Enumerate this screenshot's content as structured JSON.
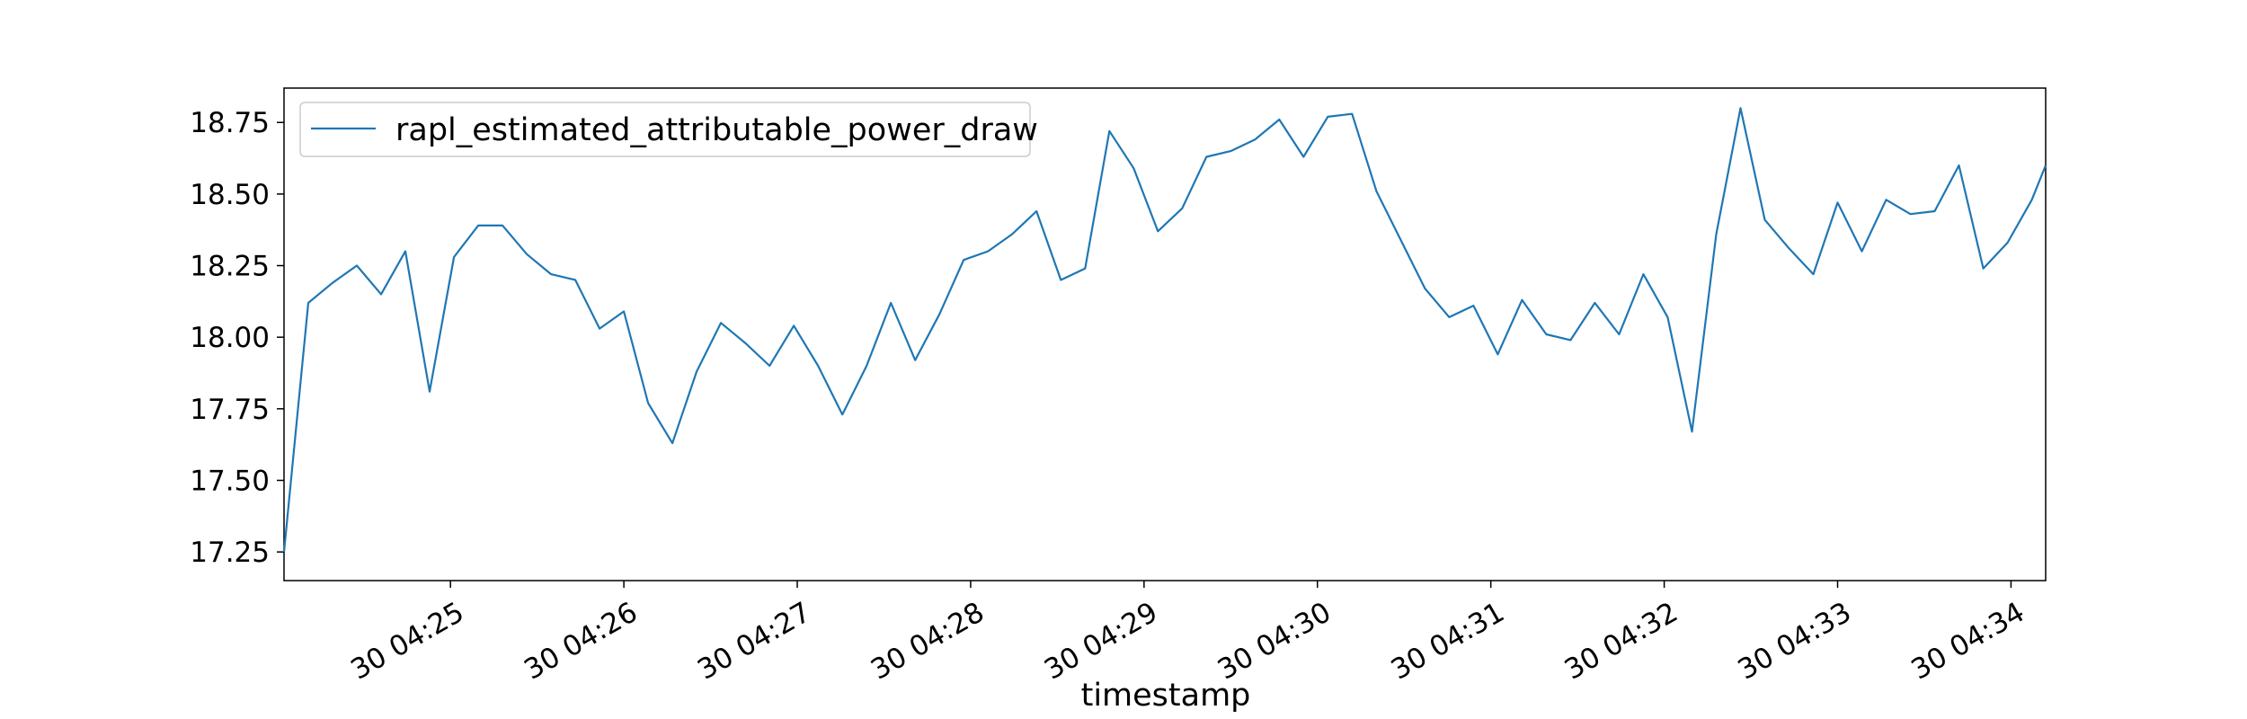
{
  "chart_data": {
    "type": "line",
    "title": "",
    "xlabel": "timestamp",
    "ylabel": "",
    "x_tick_labels": [
      "30 04:25",
      "30 04:26",
      "30 04:27",
      "30 04:28",
      "30 04:29",
      "30 04:30",
      "30 04:31",
      "30 04:32",
      "30 04:33",
      "30 04:34"
    ],
    "x_tick_minutes": [
      25,
      26,
      27,
      28,
      29,
      30,
      31,
      32,
      33,
      34
    ],
    "y_ticks": [
      17.25,
      17.5,
      17.75,
      18.0,
      18.25,
      18.5,
      18.75
    ],
    "y_tick_labels": [
      "17.25",
      "17.50",
      "17.75",
      "18.00",
      "18.25",
      "18.50",
      "18.75"
    ],
    "xlim_minutes": [
      24.04,
      34.2
    ],
    "ylim": [
      17.15,
      18.87
    ],
    "grid": false,
    "legend_position": "upper left",
    "colors": {
      "series": "#1f77b4",
      "axes": "#000000",
      "background": "#ffffff"
    },
    "series": [
      {
        "name": "rapl_estimated_attributable_power_draw",
        "x_minutes": [
          24.04,
          24.18,
          24.32,
          24.46,
          24.6,
          24.74,
          24.88,
          25.02,
          25.16,
          25.3,
          25.44,
          25.58,
          25.72,
          25.86,
          26.0,
          26.14,
          26.28,
          26.42,
          26.56,
          26.7,
          26.84,
          26.98,
          27.12,
          27.26,
          27.4,
          27.54,
          27.68,
          27.82,
          27.96,
          28.1,
          28.24,
          28.38,
          28.52,
          28.66,
          28.8,
          28.94,
          29.08,
          29.22,
          29.36,
          29.5,
          29.64,
          29.78,
          29.92,
          30.06,
          30.2,
          30.34,
          30.48,
          30.62,
          30.76,
          30.9,
          31.04,
          31.18,
          31.32,
          31.46,
          31.6,
          31.74,
          31.88,
          32.02,
          32.16,
          32.3,
          32.44,
          32.58,
          32.72,
          32.86,
          33.0,
          33.14,
          33.28,
          33.42,
          33.56,
          33.7,
          33.84,
          33.98,
          34.12,
          34.2
        ],
        "values": [
          17.25,
          18.12,
          18.19,
          18.25,
          18.15,
          18.3,
          17.81,
          18.28,
          18.39,
          18.39,
          18.29,
          18.22,
          18.2,
          18.03,
          18.09,
          17.77,
          17.63,
          17.88,
          18.05,
          17.98,
          17.9,
          18.04,
          17.9,
          17.73,
          17.9,
          18.12,
          17.92,
          18.08,
          18.27,
          18.3,
          18.36,
          18.44,
          18.2,
          18.24,
          18.72,
          18.59,
          18.37,
          18.45,
          18.63,
          18.65,
          18.69,
          18.76,
          18.63,
          18.77,
          18.78,
          18.51,
          18.34,
          18.17,
          18.07,
          18.11,
          17.94,
          18.13,
          18.01,
          17.99,
          18.12,
          18.01,
          18.22,
          18.07,
          17.67,
          18.36,
          18.8,
          18.41,
          18.31,
          18.22,
          18.47,
          18.3,
          18.48,
          18.43,
          18.44,
          18.6,
          18.24,
          18.33,
          18.48,
          18.6
        ]
      }
    ]
  }
}
